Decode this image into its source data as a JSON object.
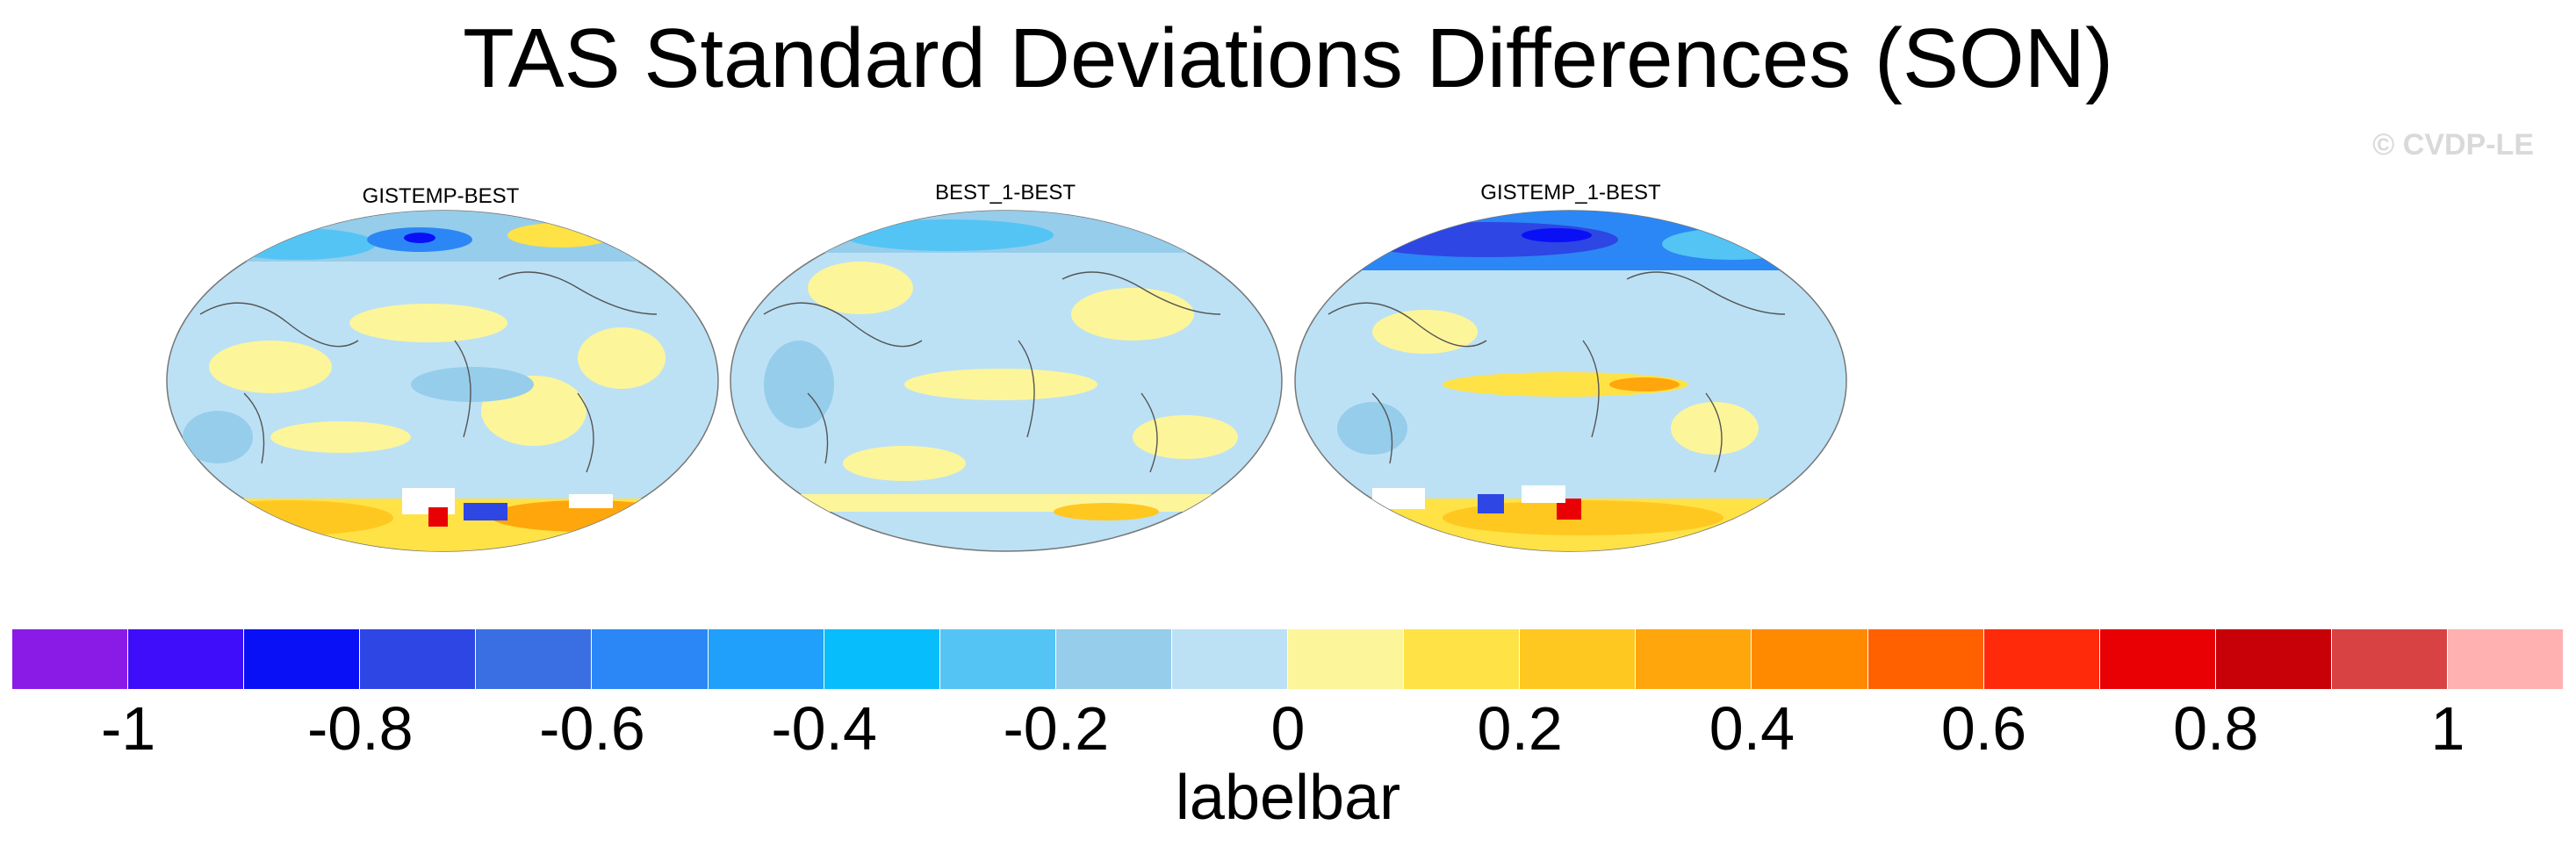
{
  "title": "TAS Standard Deviations Differences (SON)",
  "credit": "© CVDP-LE",
  "chart_data": [
    {
      "type": "heatmap",
      "projection": "Robinson (global, Pacific-centered)",
      "panels": [
        {
          "title": "GISTEMP-BEST",
          "summary": "mostly -0.2 to 0.2; negative Arctic/high-latitude north, positive Southern Ocean and Antarctic band with missing data near Antarctica"
        },
        {
          "title": "BEST_1-BEST",
          "summary": "mostly -0.2 to 0.2; weak negative northern high latitudes, mixed elsewhere"
        },
        {
          "title": "GISTEMP_1-BEST",
          "summary": "mostly -0.2 to 0.2; strong negative (-0.6 to -0.8) Arctic band, positive equatorial Pacific and Southern Ocean, missing data near Antarctica"
        }
      ],
      "colorbar": {
        "label": "labelbar",
        "levels": [
          -1,
          -0.9,
          -0.8,
          -0.7,
          -0.6,
          -0.5,
          -0.4,
          -0.3,
          -0.2,
          -0.1,
          0,
          0.1,
          0.2,
          0.3,
          0.4,
          0.5,
          0.6,
          0.7,
          0.8,
          0.9,
          1
        ],
        "tick_labels": [
          "-1",
          "-0.8",
          "-0.6",
          "-0.4",
          "-0.2",
          "0",
          "0.2",
          "0.4",
          "0.6",
          "0.8",
          "1"
        ],
        "tick_values": [
          -1,
          -0.8,
          -0.6,
          -0.4,
          -0.2,
          0,
          0.2,
          0.4,
          0.6,
          0.8,
          1
        ],
        "range": [
          -1.1,
          1.1
        ],
        "colors": [
          "#8a1be6",
          "#3f0dfa",
          "#0a10f6",
          "#2e46e3",
          "#3a6fe3",
          "#2b87f5",
          "#20a0fa",
          "#08bdfb",
          "#54c4f5",
          "#96cdeb",
          "#bce1f5",
          "#fdf59a",
          "#ffe246",
          "#ffc820",
          "#ffa60c",
          "#ff8a00",
          "#ff6000",
          "#ff2a0a",
          "#e90005",
          "#c80008",
          "#d94242",
          "#ffb0b0"
        ]
      }
    }
  ]
}
